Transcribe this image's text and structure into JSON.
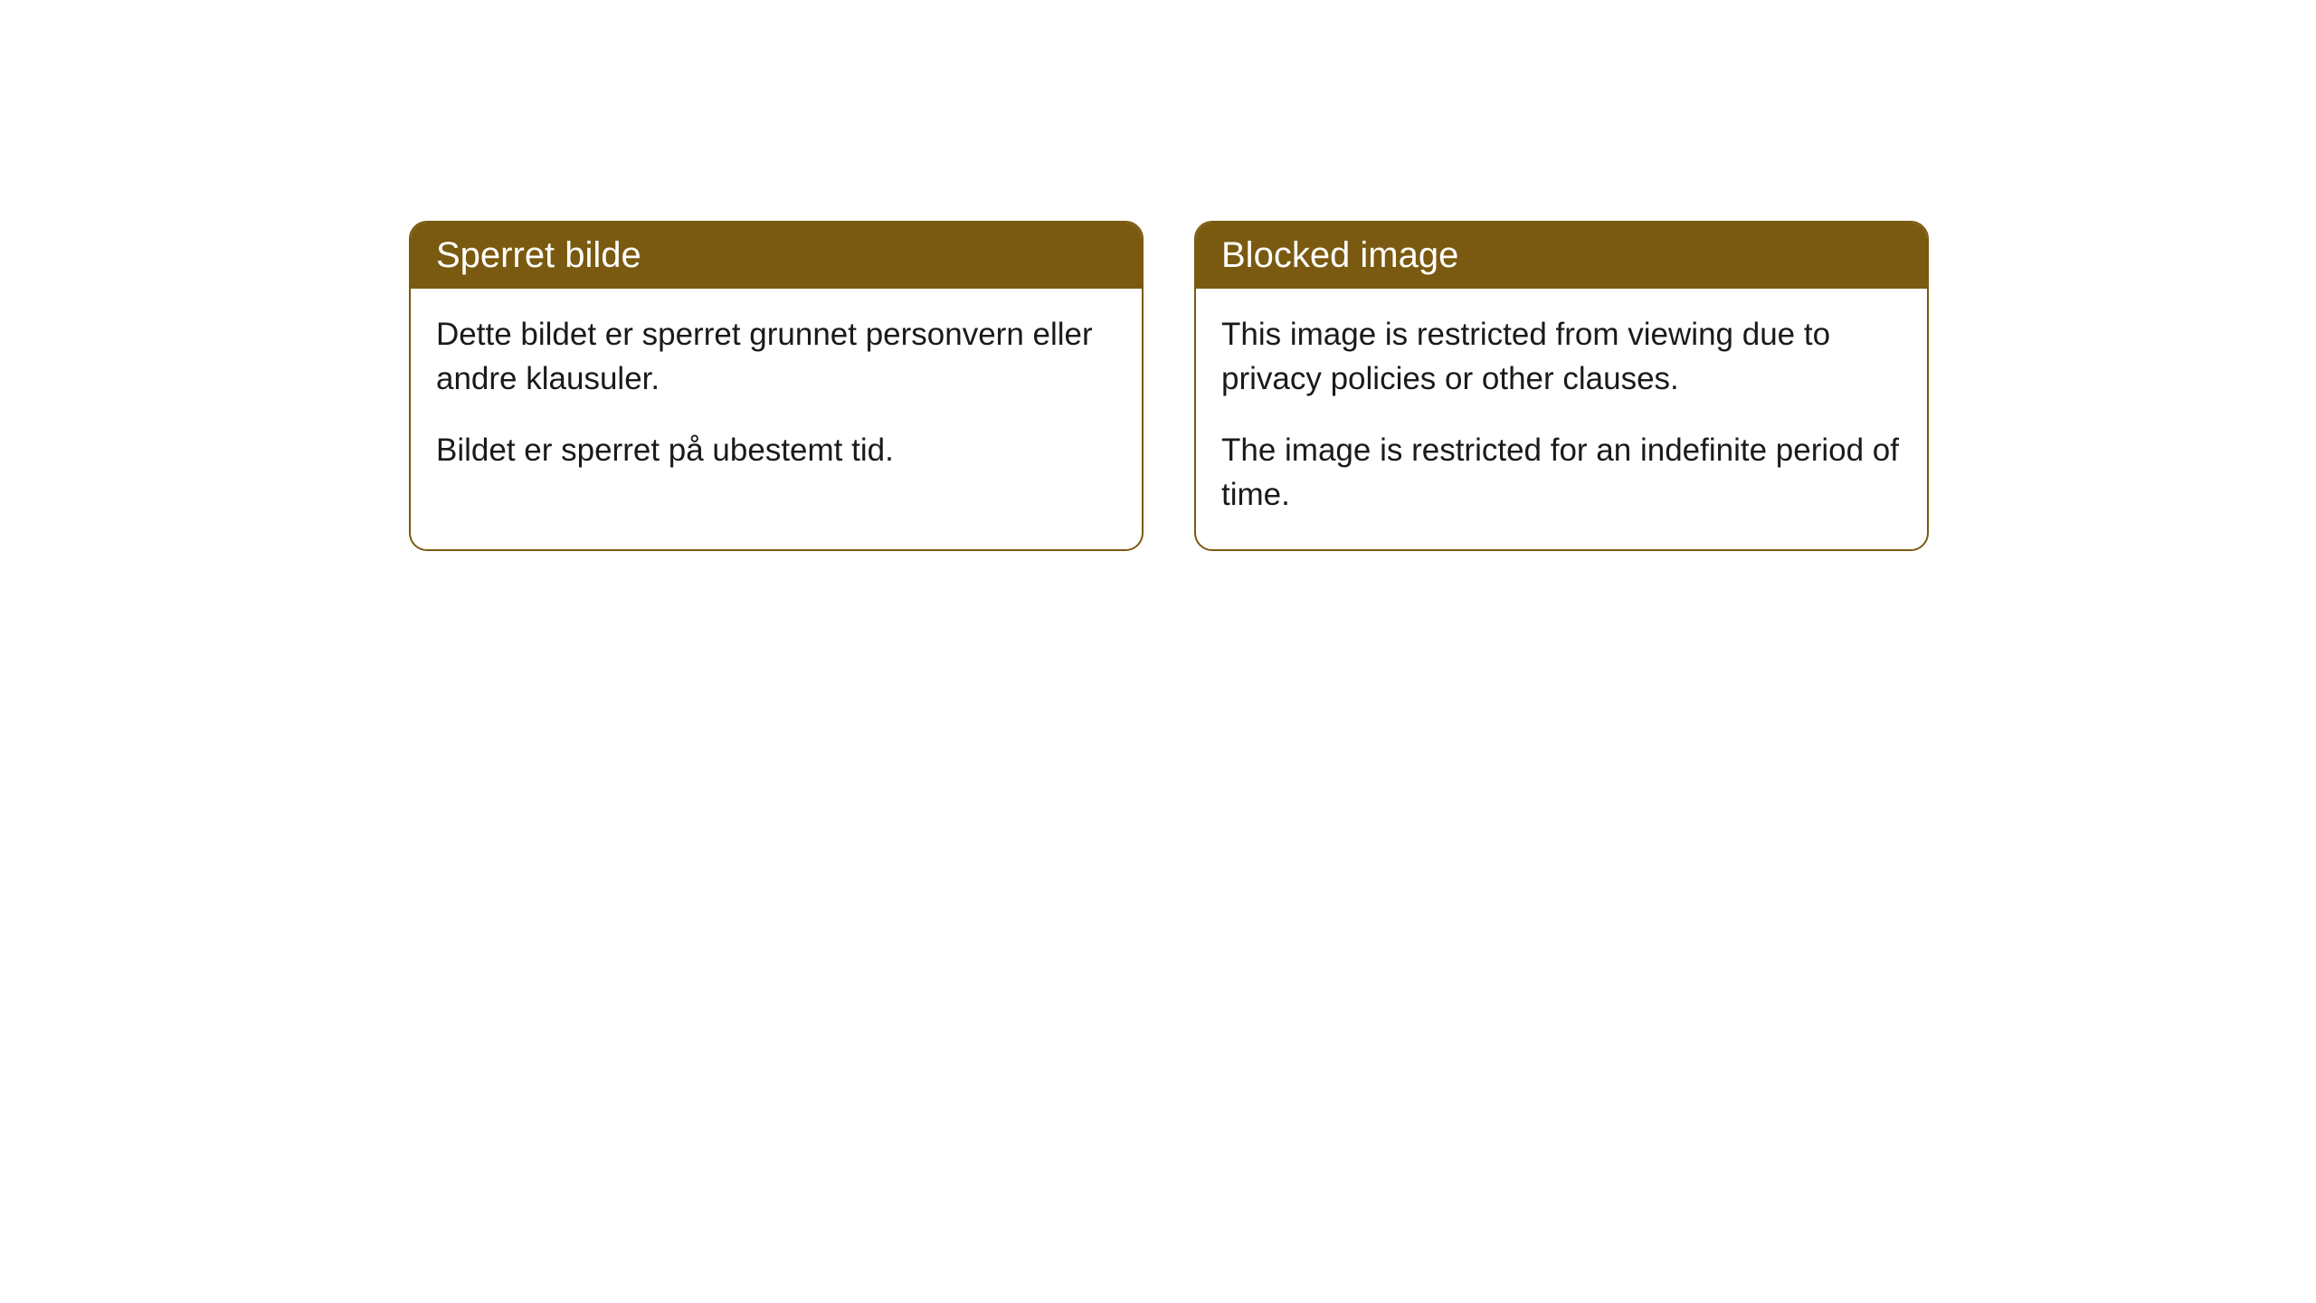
{
  "cards": [
    {
      "title": "Sperret bilde",
      "paragraph1": "Dette bildet er sperret grunnet personvern eller andre klausuler.",
      "paragraph2": "Bildet er sperret på ubestemt tid."
    },
    {
      "title": "Blocked image",
      "paragraph1": "This image is restricted from viewing due to privacy policies or other clauses.",
      "paragraph2": "The image is restricted for an indefinite period of time."
    }
  ],
  "style": {
    "header_bg_color": "#7a5a10",
    "header_text_color": "#ffffff",
    "body_bg_color": "#ffffff",
    "body_text_color": "#1a1a1a",
    "border_color": "#7a5a10",
    "border_radius": 20,
    "header_fontsize": 40,
    "body_fontsize": 35
  }
}
